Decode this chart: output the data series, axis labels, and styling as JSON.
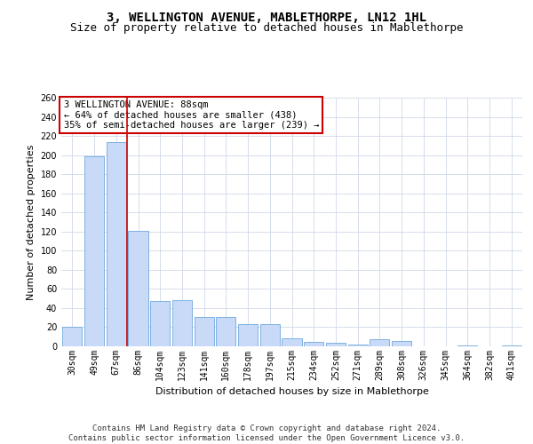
{
  "title": "3, WELLINGTON AVENUE, MABLETHORPE, LN12 1HL",
  "subtitle": "Size of property relative to detached houses in Mablethorpe",
  "xlabel": "Distribution of detached houses by size in Mablethorpe",
  "ylabel": "Number of detached properties",
  "categories": [
    "30sqm",
    "49sqm",
    "67sqm",
    "86sqm",
    "104sqm",
    "123sqm",
    "141sqm",
    "160sqm",
    "178sqm",
    "197sqm",
    "215sqm",
    "234sqm",
    "252sqm",
    "271sqm",
    "289sqm",
    "308sqm",
    "326sqm",
    "345sqm",
    "364sqm",
    "382sqm",
    "401sqm"
  ],
  "values": [
    20,
    199,
    214,
    121,
    47,
    48,
    31,
    31,
    23,
    23,
    8,
    5,
    4,
    2,
    7,
    6,
    0,
    0,
    1,
    0,
    1
  ],
  "bar_color": "#c9daf8",
  "bar_edge_color": "#6fa8dc",
  "grid_color": "#d0d8e8",
  "background_color": "#ffffff",
  "annotation_text": "3 WELLINGTON AVENUE: 88sqm\n← 64% of detached houses are smaller (438)\n35% of semi-detached houses are larger (239) →",
  "annotation_box_color": "#ffffff",
  "annotation_box_edge_color": "#cc0000",
  "vline_x_index": 2.5,
  "vline_color": "#cc0000",
  "ylim": [
    0,
    260
  ],
  "yticks": [
    0,
    20,
    40,
    60,
    80,
    100,
    120,
    140,
    160,
    180,
    200,
    220,
    240,
    260
  ],
  "footer_text": "Contains HM Land Registry data © Crown copyright and database right 2024.\nContains public sector information licensed under the Open Government Licence v3.0.",
  "title_fontsize": 10,
  "subtitle_fontsize": 9,
  "xlabel_fontsize": 8,
  "ylabel_fontsize": 8,
  "tick_fontsize": 7,
  "footer_fontsize": 6.5,
  "annotation_fontsize": 7.5
}
